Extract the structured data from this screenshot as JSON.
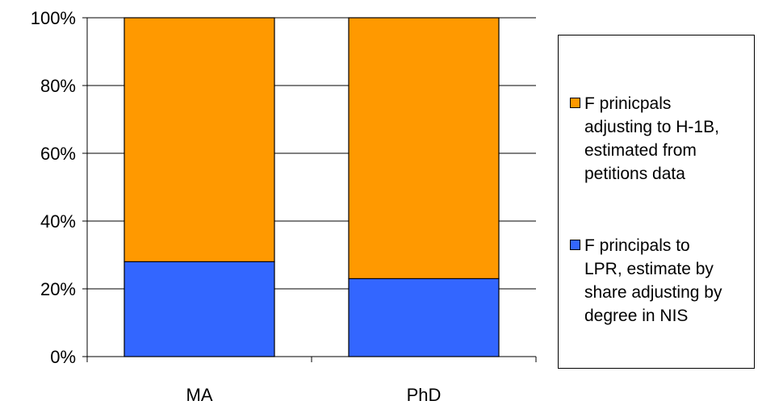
{
  "chart_data": {
    "type": "bar",
    "stacked": true,
    "categories": [
      "MA",
      "PhD"
    ],
    "series": [
      {
        "name": "F principals to LPR, estimate by share adjusting by degree in NIS",
        "values": [
          28,
          23
        ],
        "color": "#3366FF"
      },
      {
        "name": "F prinicpals adjusting to H-1B, estimated from petitions data",
        "values": [
          72,
          77
        ],
        "color": "#FF9900"
      }
    ],
    "ylim": [
      0,
      100
    ],
    "yticks": [
      "0%",
      "20%",
      "40%",
      "60%",
      "80%",
      "100%"
    ],
    "ytick_values": [
      0,
      20,
      40,
      60,
      80,
      100
    ],
    "grid": true,
    "legend_position": "right",
    "legend_order": [
      1,
      0
    ],
    "legend_labels": [
      "F prinicpals\nadjusting to H-1B,\nestimated from\npetitions data",
      "F principals to\nLPR, estimate by\nshare adjusting by\ndegree in NIS"
    ]
  }
}
